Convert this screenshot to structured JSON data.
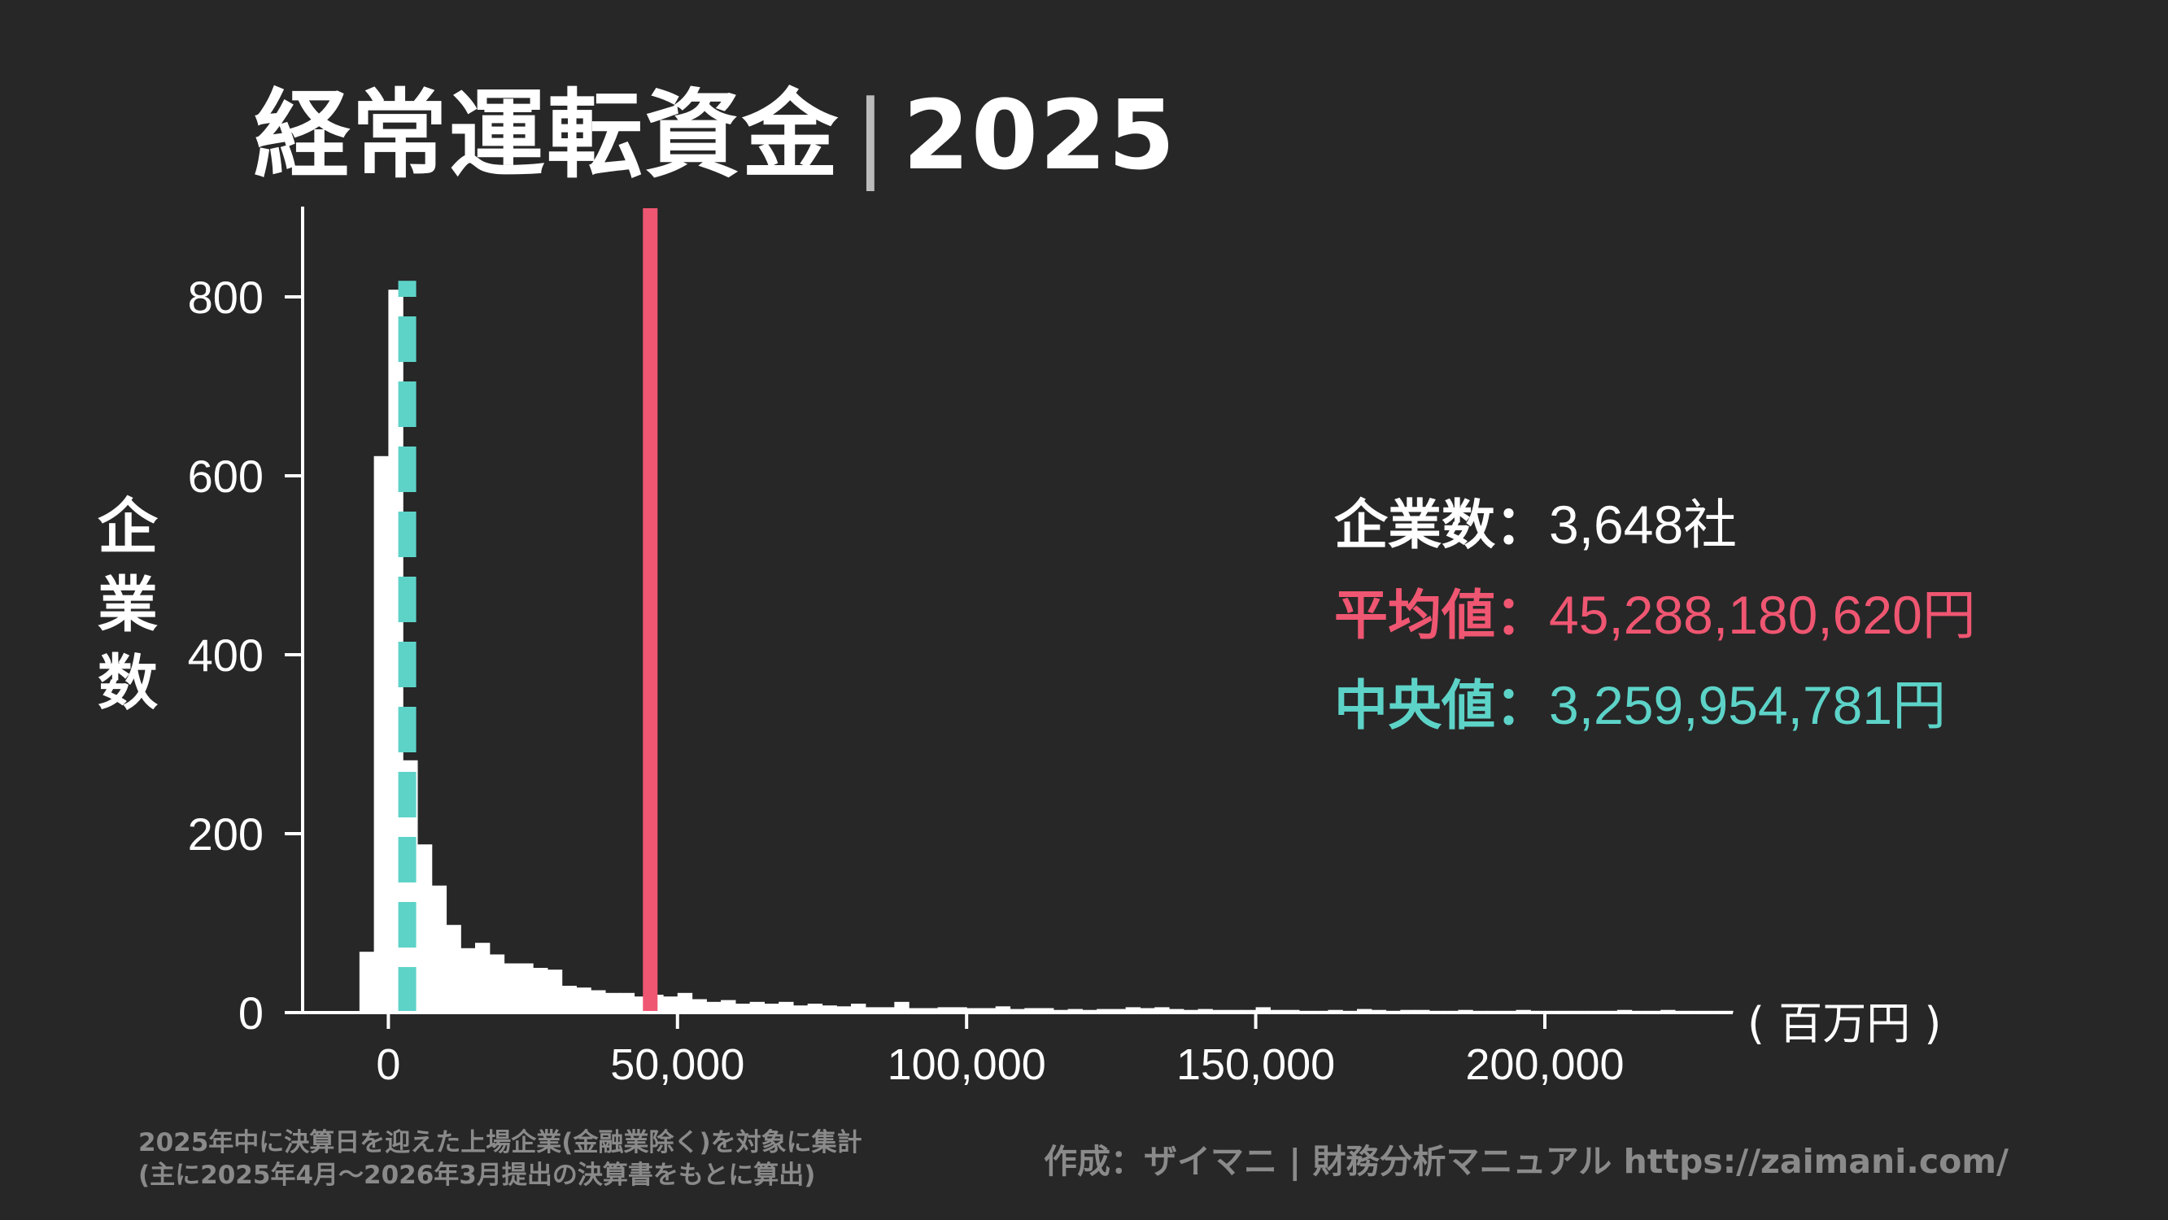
{
  "header": {
    "title_main": "経常運転資金",
    "title_sep": "|",
    "title_year": "2025"
  },
  "stats": {
    "count_label": "企業数",
    "count_colon": "：",
    "count_value": "3,648社",
    "mean_label": "平均値",
    "mean_colon": "：",
    "mean_value": "45,288,180,620円",
    "median_label": "中央値",
    "median_colon": "：",
    "median_value": "3,259,954,781円"
  },
  "colors": {
    "background": "#272727",
    "bars": "#ffffff",
    "mean": "#ef5671",
    "median": "#5dd3c8",
    "note": "#8a8a8a"
  },
  "footer": {
    "note_line1": "2025年中に決算日を迎えた上場企業(金融業除く)を対象に集計",
    "note_line2": "(主に2025年4月〜2026年3月提出の決算書をもとに算出)",
    "credit": "作成：ザイマニ | 財務分析マニュアル https://zaimani.com/"
  },
  "chart_data": {
    "type": "bar",
    "title": "経常運転資金｜2025",
    "ylabel": "企業数",
    "xlabel": "",
    "unit_label": "( 百万円 )",
    "xlim": [
      -17500,
      232500
    ],
    "ylim": [
      0,
      850
    ],
    "xticks": [
      0,
      50000,
      100000,
      150000,
      200000
    ],
    "xtick_labels": [
      "0",
      "50,000",
      "100,000",
      "150,000",
      "200,000"
    ],
    "yticks": [
      0,
      200,
      400,
      600,
      800
    ],
    "ytick_labels": [
      "0",
      "200",
      "400",
      "600",
      "800"
    ],
    "bin_width": 2500,
    "bin_start": -5000,
    "counts": [
      68,
      622,
      808,
      282,
      188,
      142,
      98,
      72,
      78,
      65,
      55,
      55,
      50,
      48,
      30,
      28,
      25,
      22,
      22,
      18,
      20,
      18,
      22,
      15,
      12,
      14,
      10,
      12,
      10,
      12,
      8,
      10,
      8,
      7,
      10,
      6,
      6,
      12,
      5,
      5,
      6,
      6,
      5,
      5,
      7,
      4,
      5,
      5,
      3,
      4,
      3,
      4,
      4,
      6,
      5,
      6,
      4,
      3,
      4,
      3,
      3,
      3,
      6,
      3,
      3,
      2,
      2,
      3,
      2,
      4,
      3,
      2,
      3,
      3,
      2,
      2,
      3,
      2,
      2,
      2,
      3,
      2,
      2,
      2,
      2,
      2,
      2,
      3,
      2,
      2,
      3,
      2,
      2,
      2,
      2
    ],
    "mean_line": 45288,
    "median_line": 3260,
    "grid": false,
    "legend": "none"
  }
}
